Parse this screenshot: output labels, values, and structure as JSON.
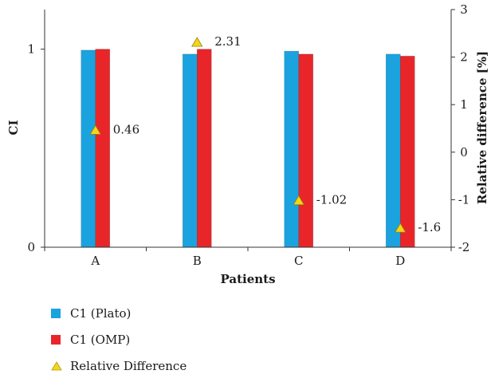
{
  "chart_data": {
    "type": "bar",
    "categories": [
      "A",
      "B",
      "C",
      "D"
    ],
    "series": [
      {
        "name": "C1 (Plato)",
        "values": [
          0.995,
          0.975,
          0.99,
          0.975
        ],
        "color": "#1aa3df",
        "axis": "left"
      },
      {
        "name": "C1 (OMP)",
        "values": [
          1.0,
          1.0,
          0.975,
          0.965
        ],
        "color": "#e8262a",
        "axis": "left"
      },
      {
        "name": "Relative Difference",
        "values": [
          0.46,
          2.31,
          -1.02,
          -1.6
        ],
        "color": "#f5d51c",
        "marker": "triangle",
        "axis": "right"
      }
    ],
    "data_labels": [
      "0.46",
      "2.31",
      "-1.02",
      "-1.6"
    ],
    "xlabel": "Patients",
    "ylabel": "CI",
    "y2label": "Relative difference [%]",
    "ylim": [
      0,
      1.2
    ],
    "y2lim": [
      -2,
      3
    ],
    "yticks": [
      "0",
      "1"
    ],
    "y2ticks": [
      "-2",
      "-1",
      "0",
      "1",
      "2",
      "3"
    ],
    "legend_position": "bottom-left",
    "grid": false
  }
}
